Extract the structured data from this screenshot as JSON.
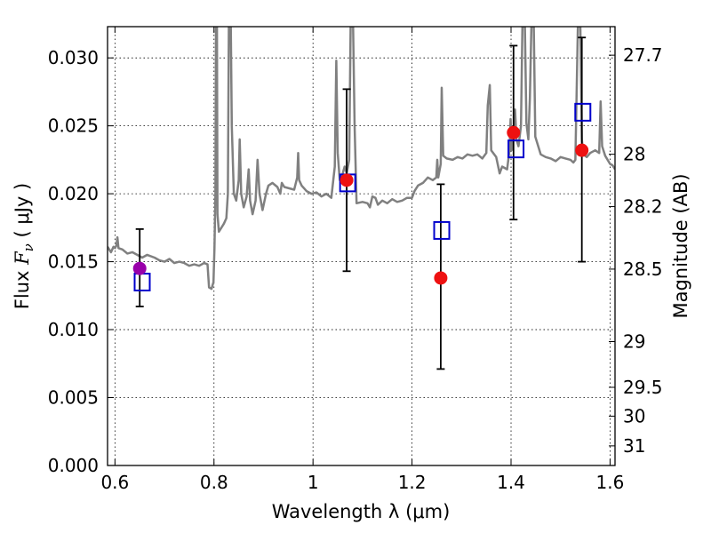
{
  "chart_data": {
    "type": "scatter",
    "title": "",
    "xlabel": "Wavelength  λ (μm)",
    "ylabel_parts": {
      "prefix": "Flux  ",
      "symbol": "F",
      "subscript": "ν",
      "unit": "  ( μJy )"
    },
    "ylabel": "Flux  Fν  ( μJy )",
    "y2label": "Magnitude (AB)",
    "xlim": [
      0.585,
      1.61
    ],
    "ylim": [
      0.0,
      0.0323
    ],
    "grid": true,
    "x_ticks": [
      {
        "value": 0.6,
        "label": "0.6"
      },
      {
        "value": 0.8,
        "label": "0.8"
      },
      {
        "value": 1.0,
        "label": "1"
      },
      {
        "value": 1.2,
        "label": "1.2"
      },
      {
        "value": 1.4,
        "label": "1.4"
      },
      {
        "value": 1.6,
        "label": "1.6"
      }
    ],
    "y_ticks": [
      {
        "value": 0.0,
        "label": "0.000"
      },
      {
        "value": 0.005,
        "label": "0.005"
      },
      {
        "value": 0.01,
        "label": "0.010"
      },
      {
        "value": 0.015,
        "label": "0.015"
      },
      {
        "value": 0.02,
        "label": "0.020"
      },
      {
        "value": 0.025,
        "label": "0.025"
      },
      {
        "value": 0.03,
        "label": "0.030"
      }
    ],
    "y2_ticks": [
      {
        "mag": 27.7,
        "label": "27.7"
      },
      {
        "mag": 28,
        "label": "28"
      },
      {
        "mag": 28.2,
        "label": "28.2"
      },
      {
        "mag": 28.5,
        "label": "28.5"
      },
      {
        "mag": 29,
        "label": "29"
      },
      {
        "mag": 29.5,
        "label": "29.5"
      },
      {
        "mag": 30,
        "label": "30"
      },
      {
        "mag": 31,
        "label": "31"
      }
    ],
    "spectrum": {
      "name": "model spectrum",
      "color": "#808080",
      "points": [
        [
          0.585,
          0.0161
        ],
        [
          0.592,
          0.0157
        ],
        [
          0.597,
          0.0161
        ],
        [
          0.6,
          0.016
        ],
        [
          0.603,
          0.0162
        ],
        [
          0.605,
          0.0168
        ],
        [
          0.607,
          0.016
        ],
        [
          0.615,
          0.0159
        ],
        [
          0.625,
          0.0156
        ],
        [
          0.635,
          0.0157
        ],
        [
          0.645,
          0.0155
        ],
        [
          0.655,
          0.0153
        ],
        [
          0.665,
          0.0155
        ],
        [
          0.68,
          0.0153
        ],
        [
          0.69,
          0.0151
        ],
        [
          0.7,
          0.015
        ],
        [
          0.71,
          0.0152
        ],
        [
          0.72,
          0.0149
        ],
        [
          0.73,
          0.015
        ],
        [
          0.74,
          0.0149
        ],
        [
          0.75,
          0.0147
        ],
        [
          0.76,
          0.0148
        ],
        [
          0.77,
          0.0147
        ],
        [
          0.78,
          0.0149
        ],
        [
          0.787,
          0.0148
        ],
        [
          0.79,
          0.0131
        ],
        [
          0.795,
          0.013
        ],
        [
          0.799,
          0.0135
        ],
        [
          0.801,
          0.016
        ],
        [
          0.803,
          0.02
        ],
        [
          0.804,
          0.0323
        ],
        [
          0.806,
          0.0323
        ],
        [
          0.807,
          0.0185
        ],
        [
          0.81,
          0.0172
        ],
        [
          0.815,
          0.0175
        ],
        [
          0.82,
          0.0178
        ],
        [
          0.825,
          0.0182
        ],
        [
          0.828,
          0.02
        ],
        [
          0.83,
          0.0323
        ],
        [
          0.834,
          0.0323
        ],
        [
          0.836,
          0.025
        ],
        [
          0.84,
          0.02
        ],
        [
          0.845,
          0.0195
        ],
        [
          0.85,
          0.021
        ],
        [
          0.852,
          0.024
        ],
        [
          0.855,
          0.02
        ],
        [
          0.86,
          0.019
        ],
        [
          0.866,
          0.0198
        ],
        [
          0.87,
          0.0218
        ],
        [
          0.873,
          0.0195
        ],
        [
          0.878,
          0.0185
        ],
        [
          0.884,
          0.0195
        ],
        [
          0.888,
          0.0225
        ],
        [
          0.892,
          0.02
        ],
        [
          0.898,
          0.0188
        ],
        [
          0.905,
          0.02
        ],
        [
          0.91,
          0.0206
        ],
        [
          0.918,
          0.0208
        ],
        [
          0.928,
          0.0205
        ],
        [
          0.934,
          0.02
        ],
        [
          0.937,
          0.0208
        ],
        [
          0.942,
          0.0205
        ],
        [
          0.952,
          0.0204
        ],
        [
          0.962,
          0.0203
        ],
        [
          0.968,
          0.0212
        ],
        [
          0.97,
          0.023
        ],
        [
          0.972,
          0.021
        ],
        [
          0.977,
          0.0206
        ],
        [
          0.987,
          0.0202
        ],
        [
          0.997,
          0.02
        ],
        [
          1.007,
          0.0201
        ],
        [
          1.017,
          0.0198
        ],
        [
          1.027,
          0.02
        ],
        [
          1.037,
          0.0197
        ],
        [
          1.044,
          0.022
        ],
        [
          1.047,
          0.0298
        ],
        [
          1.05,
          0.023
        ],
        [
          1.054,
          0.021
        ],
        [
          1.06,
          0.0215
        ],
        [
          1.064,
          0.022
        ],
        [
          1.068,
          0.0215
        ],
        [
          1.073,
          0.0225
        ],
        [
          1.076,
          0.0323
        ],
        [
          1.081,
          0.0323
        ],
        [
          1.084,
          0.025
        ],
        [
          1.088,
          0.0193
        ],
        [
          1.1,
          0.0194
        ],
        [
          1.11,
          0.0193
        ],
        [
          1.115,
          0.019
        ],
        [
          1.12,
          0.0198
        ],
        [
          1.126,
          0.0197
        ],
        [
          1.131,
          0.0192
        ],
        [
          1.14,
          0.0195
        ],
        [
          1.15,
          0.0193
        ],
        [
          1.16,
          0.0196
        ],
        [
          1.17,
          0.0194
        ],
        [
          1.18,
          0.0195
        ],
        [
          1.19,
          0.0197
        ],
        [
          1.2,
          0.0197
        ],
        [
          1.205,
          0.0202
        ],
        [
          1.212,
          0.0206
        ],
        [
          1.222,
          0.0208
        ],
        [
          1.232,
          0.0212
        ],
        [
          1.242,
          0.021
        ],
        [
          1.249,
          0.0212
        ],
        [
          1.251,
          0.0225
        ],
        [
          1.253,
          0.0212
        ],
        [
          1.258,
          0.0222
        ],
        [
          1.26,
          0.0278
        ],
        [
          1.263,
          0.0228
        ],
        [
          1.27,
          0.0226
        ],
        [
          1.282,
          0.0225
        ],
        [
          1.292,
          0.0227
        ],
        [
          1.302,
          0.0226
        ],
        [
          1.312,
          0.0229
        ],
        [
          1.322,
          0.0228
        ],
        [
          1.332,
          0.0229
        ],
        [
          1.342,
          0.0226
        ],
        [
          1.35,
          0.023
        ],
        [
          1.353,
          0.0265
        ],
        [
          1.357,
          0.028
        ],
        [
          1.36,
          0.0232
        ],
        [
          1.37,
          0.0227
        ],
        [
          1.377,
          0.0215
        ],
        [
          1.382,
          0.022
        ],
        [
          1.392,
          0.0218
        ],
        [
          1.397,
          0.0232
        ],
        [
          1.399,
          0.0255
        ],
        [
          1.401,
          0.0232
        ],
        [
          1.405,
          0.024
        ],
        [
          1.408,
          0.0262
        ],
        [
          1.411,
          0.024
        ],
        [
          1.415,
          0.0235
        ],
        [
          1.42,
          0.025
        ],
        [
          1.423,
          0.0323
        ],
        [
          1.428,
          0.0323
        ],
        [
          1.431,
          0.0252
        ],
        [
          1.435,
          0.024
        ],
        [
          1.438,
          0.027
        ],
        [
          1.441,
          0.0323
        ],
        [
          1.446,
          0.0323
        ],
        [
          1.449,
          0.0242
        ],
        [
          1.46,
          0.0229
        ],
        [
          1.47,
          0.0227
        ],
        [
          1.48,
          0.0226
        ],
        [
          1.49,
          0.0224
        ],
        [
          1.5,
          0.0227
        ],
        [
          1.51,
          0.0226
        ],
        [
          1.52,
          0.0225
        ],
        [
          1.526,
          0.0223
        ],
        [
          1.53,
          0.0225
        ],
        [
          1.535,
          0.0323
        ],
        [
          1.54,
          0.0323
        ],
        [
          1.543,
          0.024
        ],
        [
          1.546,
          0.0229
        ],
        [
          1.553,
          0.0227
        ],
        [
          1.56,
          0.023
        ],
        [
          1.57,
          0.0232
        ],
        [
          1.578,
          0.023
        ],
        [
          1.581,
          0.0268
        ],
        [
          1.584,
          0.0235
        ],
        [
          1.59,
          0.0228
        ],
        [
          1.6,
          0.0222
        ],
        [
          1.605,
          0.0221
        ],
        [
          1.61,
          0.0218
        ]
      ]
    },
    "model_photometry": {
      "name": "model band fluxes",
      "marker": "open-square",
      "color": "#0000cc",
      "points": [
        {
          "x": 0.655,
          "y": 0.0135
        },
        {
          "x": 1.07,
          "y": 0.0208
        },
        {
          "x": 1.26,
          "y": 0.0173
        },
        {
          "x": 1.41,
          "y": 0.0233
        },
        {
          "x": 1.545,
          "y": 0.026
        }
      ]
    },
    "observed_photometry": {
      "name": "observed fluxes",
      "marker": "filled-circle",
      "points": [
        {
          "x": 0.65,
          "y": 0.0145,
          "yerr_low": 0.0117,
          "yerr_high": 0.0174,
          "color": "#9900aa"
        },
        {
          "x": 1.068,
          "y": 0.021,
          "yerr_low": 0.0143,
          "yerr_high": 0.0277,
          "color": "#ee1111"
        },
        {
          "x": 1.258,
          "y": 0.0138,
          "yerr_low": 0.0071,
          "yerr_high": 0.0207,
          "color": "#ee1111"
        },
        {
          "x": 1.405,
          "y": 0.0245,
          "yerr_low": 0.0181,
          "yerr_high": 0.0309,
          "color": "#ee1111"
        },
        {
          "x": 1.543,
          "y": 0.0232,
          "yerr_low": 0.015,
          "yerr_high": 0.0315,
          "color": "#ee1111"
        }
      ]
    }
  }
}
